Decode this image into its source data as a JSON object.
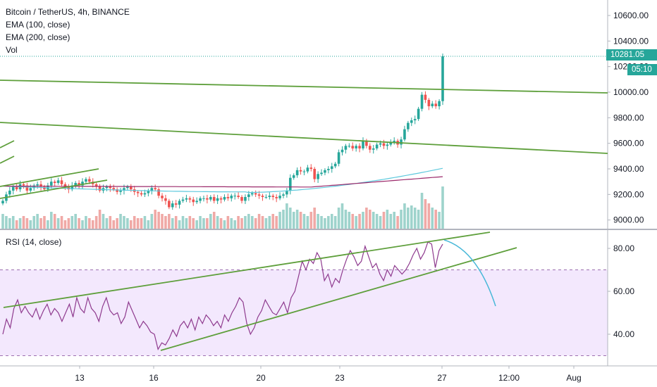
{
  "header": {
    "title": "Bitcoin / TetherUS, 4h, BINANCE",
    "indicators": [
      "EMA (100, close)",
      "EMA (200, close)",
      "Vol"
    ]
  },
  "rsi_panel": {
    "label": "RSI (14, close)"
  },
  "badges": {
    "last_price": "10281.05",
    "countdown": "05:10"
  },
  "colors": {
    "up": "#26a69a",
    "down": "#ef5350",
    "vol_up": "#9ed3cc",
    "vol_down": "#f0a9a6",
    "ema100": "#5ec9dd",
    "ema200": "#9c2a6b",
    "trend": "#5e9f3b",
    "rsi": "#8e3a8e",
    "rsi_band": "#f3e8fd",
    "projection": "#48b8d8"
  },
  "chart_data": [
    {
      "type": "candlestick",
      "title": "Bitcoin / TetherUS, 4h, BINANCE",
      "y_ticks": [
        "10600.00",
        "10400.00",
        "10200.00",
        "10000.00",
        "9800.00",
        "9600.00",
        "9400.00",
        "9200.00",
        "9000.00"
      ],
      "ylim": [
        8940,
        10740
      ],
      "last_price": 10281.05,
      "closes": [
        9150,
        9200,
        9230,
        9260,
        9240,
        9280,
        9270,
        9230,
        9250,
        9270,
        9280,
        9260,
        9240,
        9270,
        9300,
        9290,
        9310,
        9280,
        9260,
        9240,
        9270,
        9290,
        9270,
        9300,
        9320,
        9300,
        9280,
        9260,
        9230,
        9250,
        9260,
        9250,
        9240,
        9220,
        9230,
        9250,
        9260,
        9240,
        9220,
        9210,
        9200,
        9210,
        9230,
        9250,
        9240,
        9190,
        9170,
        9150,
        9100,
        9130,
        9120,
        9150,
        9160,
        9170,
        9160,
        9140,
        9150,
        9170,
        9170,
        9160,
        9180,
        9150,
        9170,
        9160,
        9180,
        9170,
        9190,
        9190,
        9180,
        9150,
        9180,
        9200,
        9210,
        9200,
        9190,
        9180,
        9180,
        9190,
        9180,
        9170,
        9190,
        9200,
        9230,
        9330,
        9350,
        9390,
        9380,
        9380,
        9410,
        9400,
        9320,
        9360,
        9370,
        9390,
        9400,
        9420,
        9440,
        9530,
        9550,
        9580,
        9580,
        9560,
        9580,
        9560,
        9620,
        9580,
        9550,
        9560,
        9590,
        9600,
        9580,
        9590,
        9610,
        9620,
        9590,
        9630,
        9710,
        9760,
        9780,
        9790,
        9870,
        9980,
        9940,
        9890,
        9910,
        9890,
        9930,
        10281
      ],
      "volume": {
        "categories_up": true,
        "max": 1.0,
        "values": [
          0.35,
          0.3,
          0.25,
          0.3,
          0.2,
          0.25,
          0.3,
          0.25,
          0.2,
          0.3,
          0.35,
          0.25,
          0.3,
          0.2,
          0.4,
          0.35,
          0.25,
          0.3,
          0.2,
          0.25,
          0.3,
          0.35,
          0.25,
          0.2,
          0.3,
          0.25,
          0.2,
          0.3,
          0.45,
          0.35,
          0.25,
          0.3,
          0.2,
          0.25,
          0.35,
          0.3,
          0.25,
          0.2,
          0.3,
          0.25,
          0.25,
          0.3,
          0.2,
          0.35,
          0.45,
          0.4,
          0.35,
          0.3,
          0.35,
          0.25,
          0.3,
          0.2,
          0.3,
          0.25,
          0.3,
          0.25,
          0.2,
          0.3,
          0.25,
          0.25,
          0.35,
          0.4,
          0.3,
          0.25,
          0.2,
          0.3,
          0.25,
          0.2,
          0.3,
          0.25,
          0.3,
          0.35,
          0.3,
          0.25,
          0.35,
          0.3,
          0.25,
          0.3,
          0.35,
          0.3,
          0.4,
          0.45,
          0.6,
          0.5,
          0.4,
          0.45,
          0.4,
          0.35,
          0.3,
          0.4,
          0.5,
          0.35,
          0.3,
          0.25,
          0.3,
          0.35,
          0.3,
          0.5,
          0.6,
          0.45,
          0.4,
          0.35,
          0.3,
          0.35,
          0.4,
          0.5,
          0.45,
          0.4,
          0.35,
          0.3,
          0.4,
          0.45,
          0.35,
          0.4,
          0.3,
          0.45,
          0.6,
          0.5,
          0.55,
          0.5,
          0.45,
          0.85,
          0.7,
          0.6,
          0.5,
          0.45,
          0.4,
          1.0
        ]
      }
    },
    {
      "type": "line",
      "title": "RSI (14, close)",
      "y_ticks": [
        "80.00",
        "60.00",
        "40.00"
      ],
      "ylim": [
        25,
        87
      ],
      "band": [
        30,
        70
      ],
      "values": [
        40,
        47,
        43,
        52,
        56,
        50,
        53,
        50,
        48,
        52,
        47,
        51,
        54,
        49,
        52,
        50,
        46,
        50,
        54,
        48,
        57,
        52,
        50,
        57,
        52,
        50,
        46,
        53,
        57,
        51,
        49,
        50,
        45,
        48,
        55,
        51,
        47,
        43,
        46,
        44,
        41,
        40,
        33,
        36,
        35,
        38,
        42,
        39,
        44,
        46,
        43,
        47,
        42,
        48,
        45,
        49,
        47,
        44,
        46,
        43,
        49,
        46,
        50,
        53,
        57,
        55,
        45,
        40,
        43,
        48,
        51,
        56,
        53,
        50,
        49,
        52,
        55,
        50,
        57,
        60,
        67,
        74,
        70,
        75,
        73,
        78,
        75,
        65,
        68,
        62,
        66,
        64,
        70,
        75,
        79,
        76,
        72,
        74,
        81,
        76,
        71,
        73,
        68,
        65,
        70,
        67,
        72,
        70,
        68,
        70,
        73,
        77,
        80,
        75,
        78,
        83,
        82,
        71,
        79,
        82
      ]
    }
  ],
  "x_axis": {
    "labels": [
      "13",
      "16",
      "20",
      "23",
      "27",
      "12:00",
      "Aug"
    ]
  }
}
